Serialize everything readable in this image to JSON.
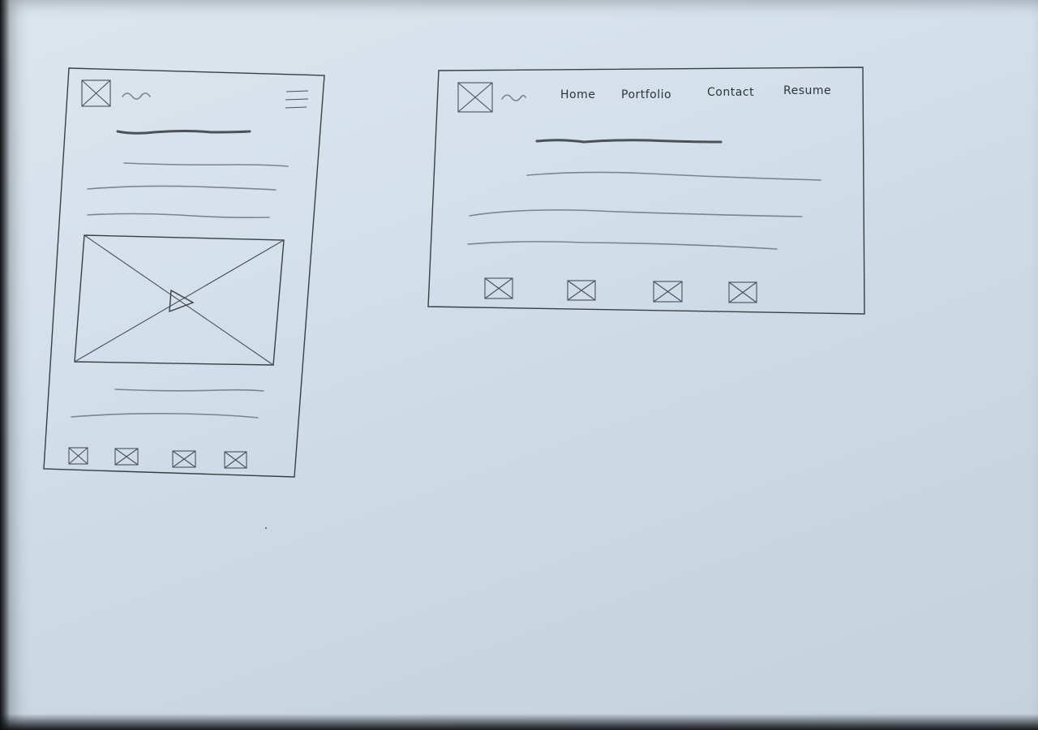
{
  "desktop_nav": {
    "items": [
      "Home",
      "Portfolio",
      "Contact",
      "Resume"
    ]
  }
}
